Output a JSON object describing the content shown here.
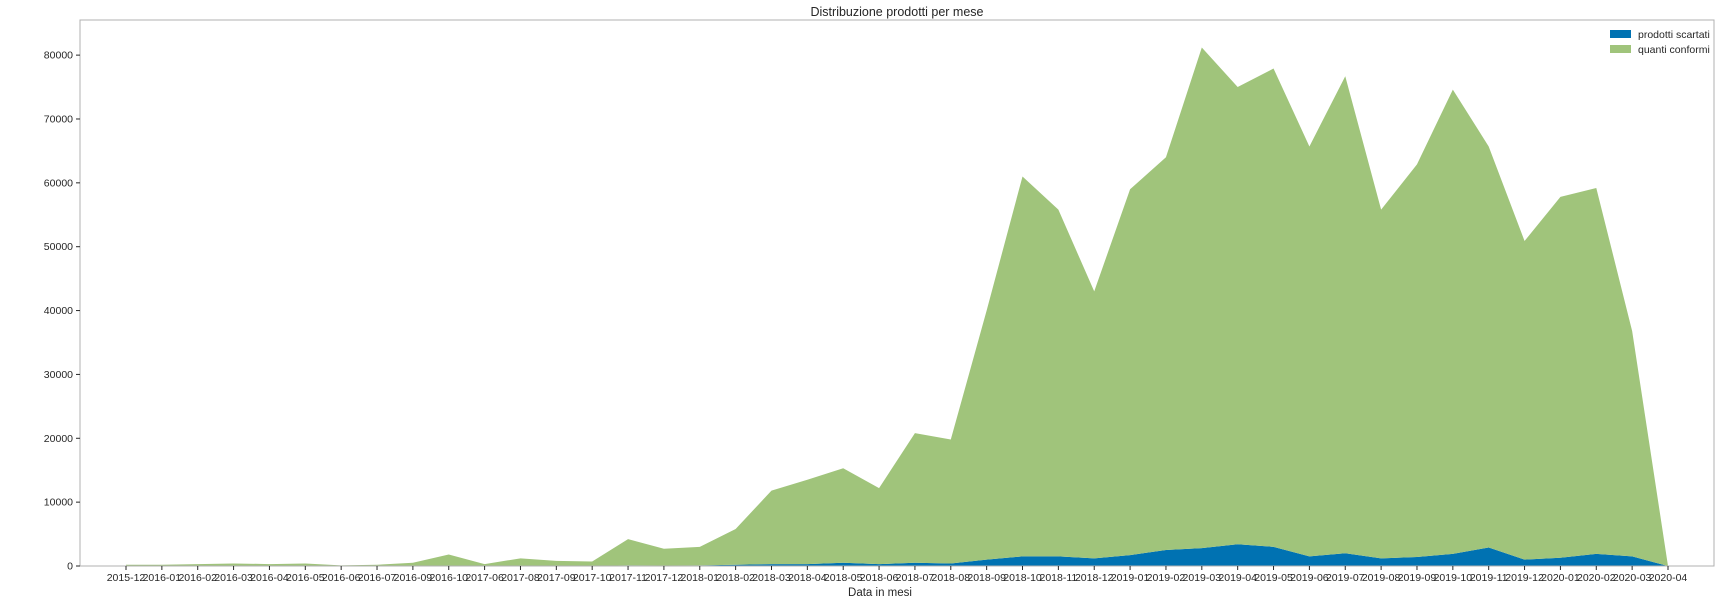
{
  "chart_data": {
    "type": "area",
    "stacked": true,
    "title": "Distribuzione prodotti per mese",
    "xlabel": "Data in mesi",
    "ylabel": "",
    "ylim": [
      0,
      85500
    ],
    "yticks": [
      0,
      10000,
      20000,
      30000,
      40000,
      50000,
      60000,
      70000,
      80000
    ],
    "grid": false,
    "legend_position": "top-right",
    "categories": [
      "2015-12",
      "2016-01",
      "2016-02",
      "2016-03",
      "2016-04",
      "2016-05",
      "2016-06",
      "2016-07",
      "2016-09",
      "2016-10",
      "2017-06",
      "2017-08",
      "2017-09",
      "2017-10",
      "2017-11",
      "2017-12",
      "2018-01",
      "2018-02",
      "2018-03",
      "2018-04",
      "2018-05",
      "2018-06",
      "2018-07",
      "2018-08",
      "2018-09",
      "2018-10",
      "2018-11",
      "2018-12",
      "2019-01",
      "2019-02",
      "2019-03",
      "2019-04",
      "2019-05",
      "2019-06",
      "2019-07",
      "2019-08",
      "2019-09",
      "2019-10",
      "2019-11",
      "2019-12",
      "2020-01",
      "2020-02",
      "2020-03",
      "2020-04"
    ],
    "series": [
      {
        "name": "prodotti scartati",
        "color": "#0072b2",
        "values": [
          10,
          10,
          20,
          30,
          20,
          30,
          10,
          20,
          40,
          80,
          20,
          50,
          40,
          30,
          100,
          80,
          100,
          200,
          300,
          300,
          500,
          300,
          500,
          400,
          1000,
          1500,
          1500,
          1200,
          1700,
          2500,
          2800,
          3400,
          3000,
          1500,
          2000,
          1200,
          1400,
          1900,
          2900,
          1000,
          1300,
          1900,
          1500,
          0
        ]
      },
      {
        "name": "quanti conformi",
        "color": "#a0c47b",
        "values": [
          190,
          190,
          280,
          370,
          280,
          370,
          90,
          180,
          460,
          1720,
          280,
          1150,
          760,
          670,
          4100,
          2620,
          2900,
          5600,
          11500,
          13200,
          14800,
          11900,
          20300,
          19400,
          39000,
          59500,
          54300,
          41800,
          57300,
          61500,
          78400,
          71600,
          74900,
          64200,
          74700,
          54600,
          61500,
          72700,
          62800,
          49900,
          56500,
          57300,
          35300,
          0
        ]
      }
    ]
  }
}
